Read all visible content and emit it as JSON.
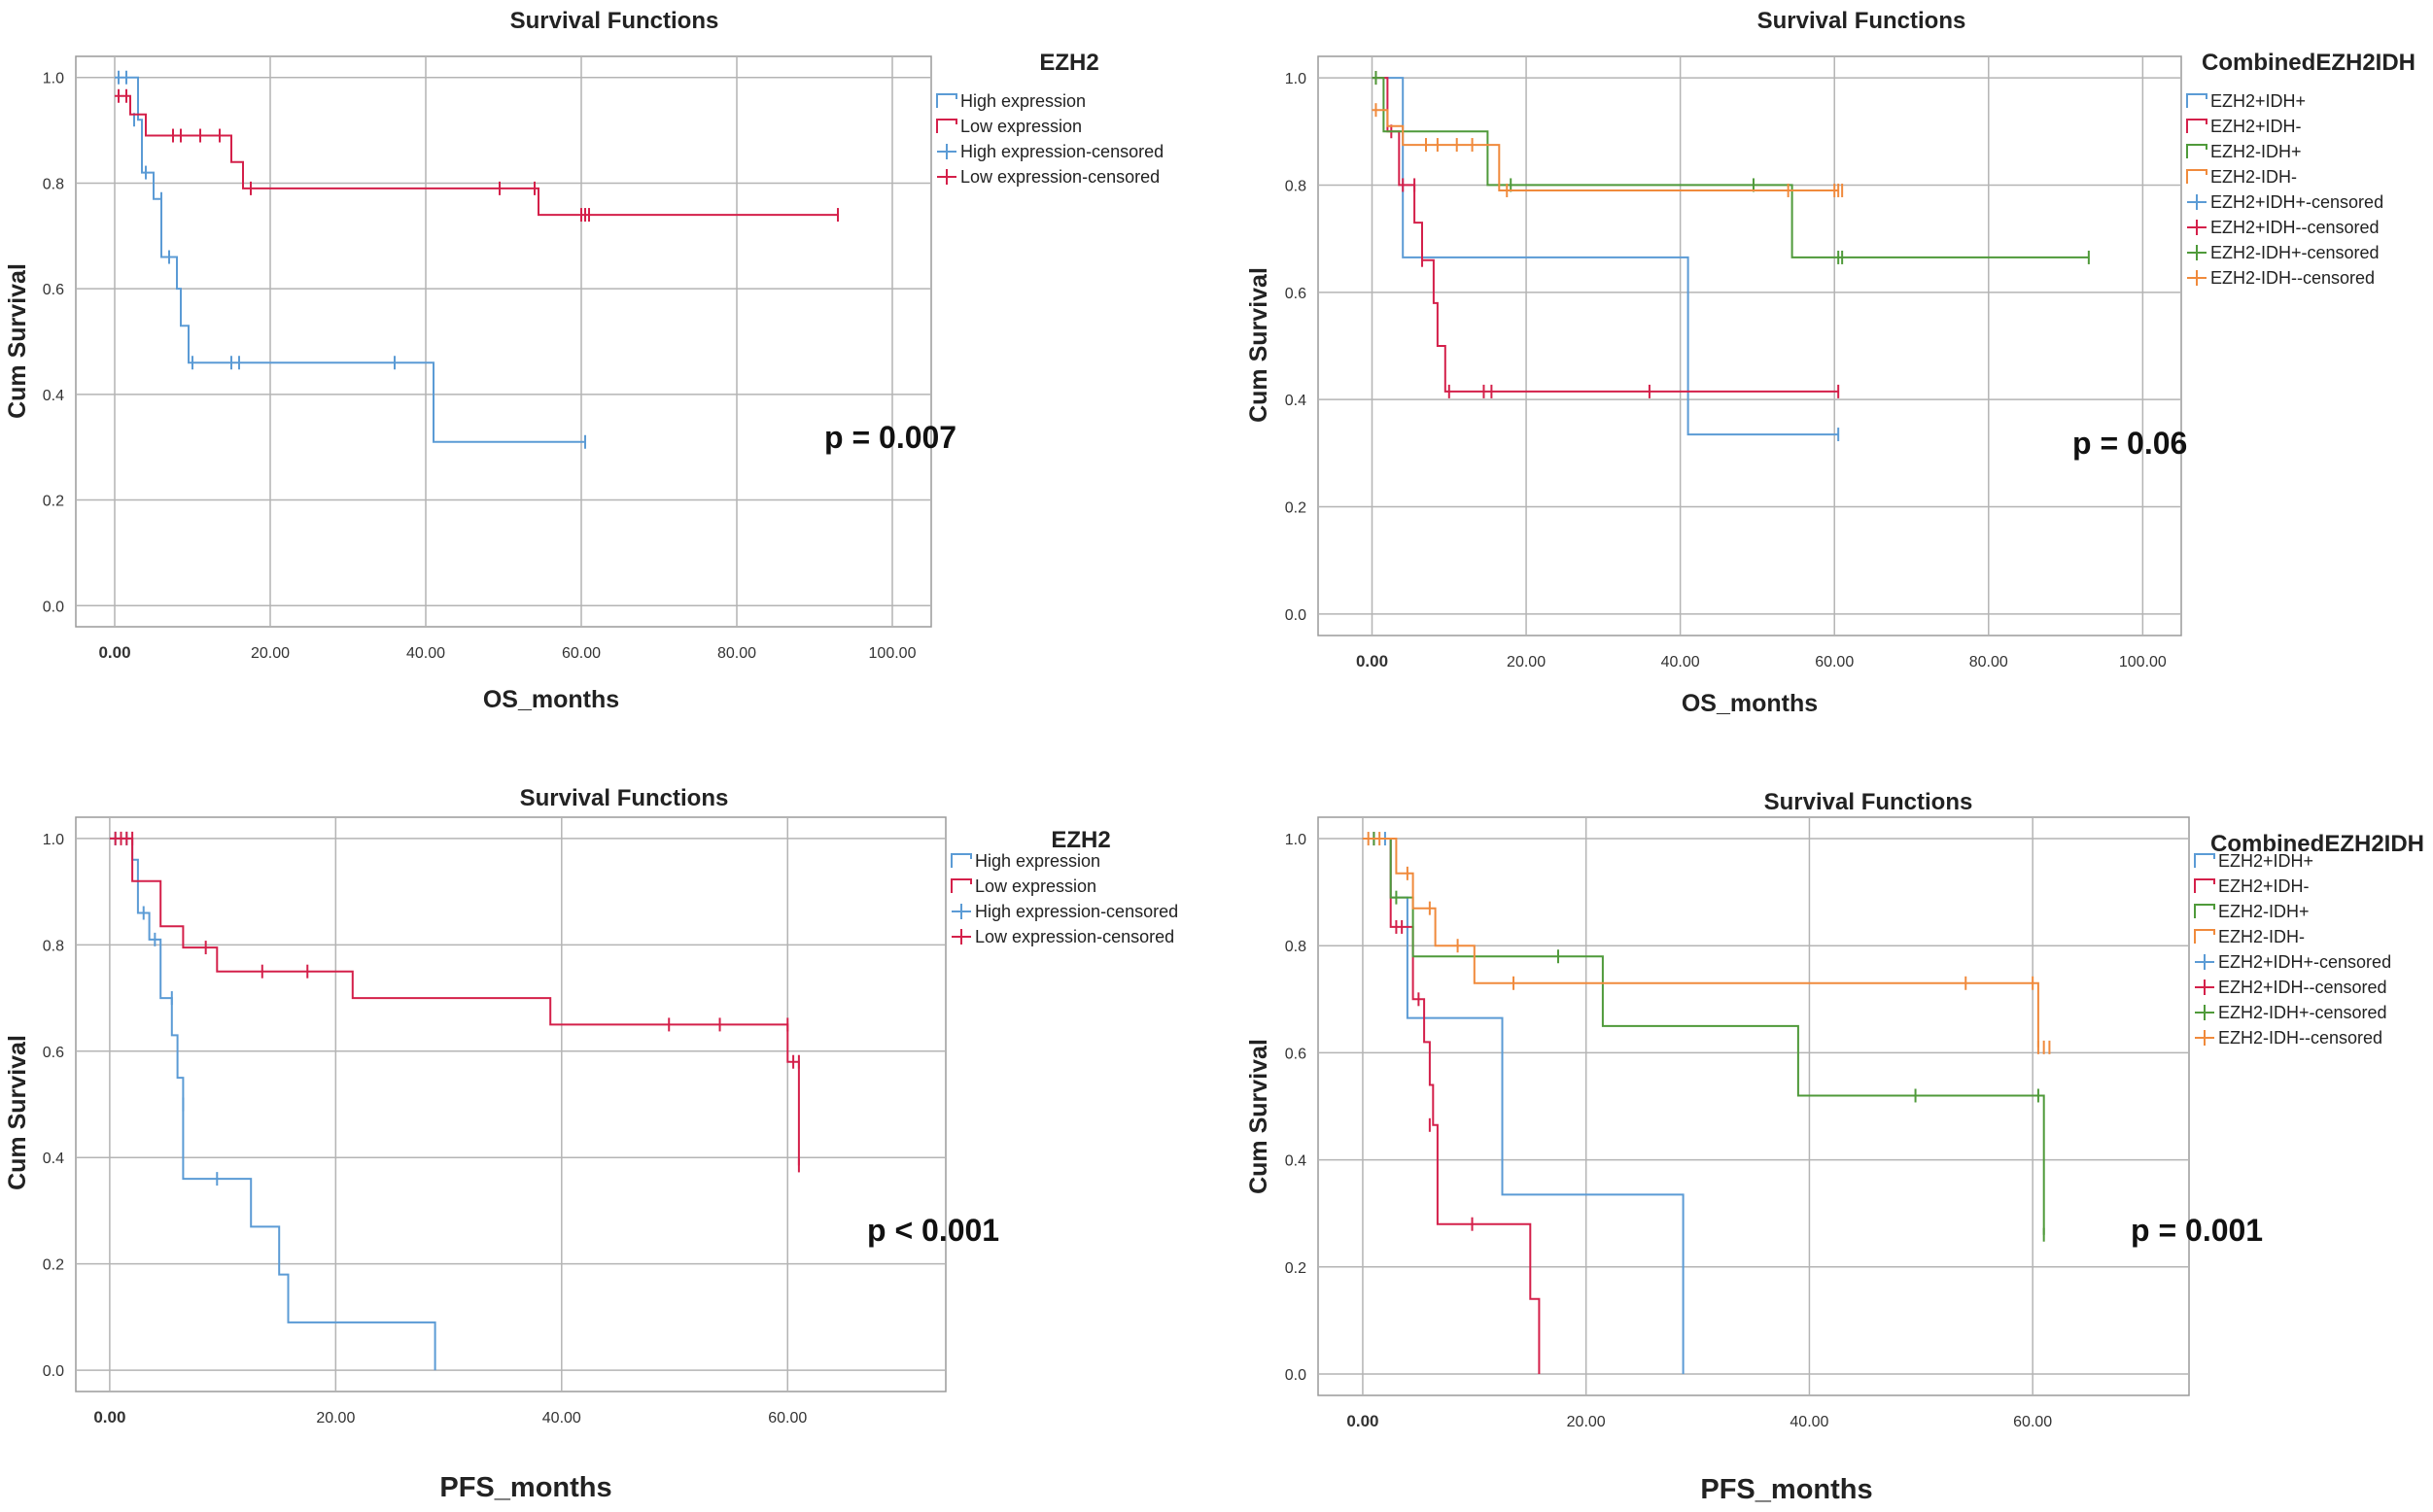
{
  "figure": "Kaplan-Meier survival curves",
  "chart_data": [
    {
      "type": "line",
      "title": "Survival Functions",
      "xlabel": "OS_months",
      "ylabel": "Cum Survival",
      "xlim": [
        -5,
        105
      ],
      "ylim": [
        -0.04,
        1.04
      ],
      "x_ticks": [
        "0.00",
        "20.00",
        "40.00",
        "60.00",
        "80.00",
        "100.00"
      ],
      "y_ticks": [
        "0.0",
        "0.2",
        "0.4",
        "0.6",
        "0.8",
        "1.0"
      ],
      "legend_title": "EZH2",
      "legend_items": [
        "High expression",
        "Low expression",
        "High expression-censored",
        "Low expression-censored"
      ],
      "p_value": "p = 0.007",
      "series": [
        {
          "name": "High expression",
          "color": "#5b9bd5",
          "steps": [
            [
              0,
              1.0
            ],
            [
              3,
              0.92
            ],
            [
              3.5,
              0.82
            ],
            [
              5,
              0.77
            ],
            [
              6,
              0.66
            ],
            [
              8,
              0.6
            ],
            [
              8.5,
              0.53
            ],
            [
              9.5,
              0.46
            ],
            [
              41,
              0.31
            ],
            [
              60.5,
              0.31
            ]
          ],
          "censored": [
            [
              0.5,
              1.0
            ],
            [
              1.5,
              1.0
            ],
            [
              2.5,
              0.92
            ],
            [
              4,
              0.82
            ],
            [
              6,
              0.77
            ],
            [
              7,
              0.66
            ],
            [
              10,
              0.46
            ],
            [
              15,
              0.46
            ],
            [
              16,
              0.46
            ],
            [
              36,
              0.46
            ],
            [
              60.5,
              0.31
            ]
          ]
        },
        {
          "name": "Low expression",
          "color": "#d4204a",
          "steps": [
            [
              0,
              0.965
            ],
            [
              2,
              0.93
            ],
            [
              4,
              0.89
            ],
            [
              15,
              0.84
            ],
            [
              16.5,
              0.79
            ],
            [
              54.5,
              0.74
            ],
            [
              93,
              0.74
            ]
          ],
          "censored": [
            [
              0.5,
              0.965
            ],
            [
              1.5,
              0.965
            ],
            [
              7.5,
              0.89
            ],
            [
              8.5,
              0.89
            ],
            [
              11,
              0.89
            ],
            [
              13.5,
              0.89
            ],
            [
              17.5,
              0.79
            ],
            [
              49.5,
              0.79
            ],
            [
              54,
              0.79
            ],
            [
              60,
              0.74
            ],
            [
              60.5,
              0.74
            ],
            [
              61,
              0.74
            ],
            [
              93,
              0.74
            ]
          ]
        }
      ]
    },
    {
      "type": "line",
      "title": "Survival Functions",
      "xlabel": "OS_months",
      "ylabel": "Cum Survival",
      "xlim": [
        -7,
        105
      ],
      "ylim": [
        -0.04,
        1.04
      ],
      "x_ticks": [
        "0.00",
        "20.00",
        "40.00",
        "60.00",
        "80.00",
        "100.00"
      ],
      "y_ticks": [
        "0.0",
        "0.2",
        "0.4",
        "0.6",
        "0.8",
        "1.0"
      ],
      "legend_title": "CombinedEZH2IDH",
      "legend_items": [
        "EZH2+IDH+",
        "EZH2+IDH-",
        "EZH2-IDH+",
        "EZH2-IDH-",
        "EZH2+IDH+-censored",
        "EZH2+IDH--censored",
        "EZH2-IDH+-censored",
        "EZH2-IDH--censored"
      ],
      "p_value": "p = 0.06",
      "series": [
        {
          "name": "EZH2+IDH+",
          "color": "#5b9bd5",
          "steps": [
            [
              0,
              1.0
            ],
            [
              4,
              0.665
            ],
            [
              41,
              0.335
            ],
            [
              60.5,
              0.335
            ]
          ],
          "censored": [
            [
              60.5,
              0.335
            ]
          ]
        },
        {
          "name": "EZH2+IDH-",
          "color": "#d4204a",
          "steps": [
            [
              0,
              1.0
            ],
            [
              2,
              0.9
            ],
            [
              3.5,
              0.8
            ],
            [
              5.5,
              0.73
            ],
            [
              6.5,
              0.66
            ],
            [
              8,
              0.58
            ],
            [
              8.5,
              0.5
            ],
            [
              9.5,
              0.415
            ],
            [
              60.5,
              0.415
            ]
          ],
          "censored": [
            [
              0.5,
              1.0
            ],
            [
              2.5,
              0.9
            ],
            [
              4,
              0.8
            ],
            [
              5.5,
              0.8
            ],
            [
              6.5,
              0.66
            ],
            [
              10,
              0.415
            ],
            [
              14.5,
              0.415
            ],
            [
              15.5,
              0.415
            ],
            [
              36,
              0.415
            ],
            [
              60.5,
              0.415
            ]
          ]
        },
        {
          "name": "EZH2-IDH+",
          "color": "#4f9a3a",
          "steps": [
            [
              0,
              1.0
            ],
            [
              1.5,
              0.9
            ],
            [
              15,
              0.8
            ],
            [
              54.5,
              0.665
            ],
            [
              93,
              0.665
            ]
          ],
          "censored": [
            [
              0.5,
              1.0
            ],
            [
              18,
              0.8
            ],
            [
              49.5,
              0.8
            ],
            [
              60.5,
              0.665
            ],
            [
              61,
              0.665
            ],
            [
              93,
              0.665
            ]
          ]
        },
        {
          "name": "EZH2-IDH-",
          "color": "#f08a3c",
          "steps": [
            [
              0,
              0.94
            ],
            [
              1.5,
              0.94
            ],
            [
              2,
              0.91
            ],
            [
              4,
              0.875
            ],
            [
              16.5,
              0.79
            ],
            [
              60.5,
              0.79
            ]
          ],
          "censored": [
            [
              0.5,
              0.94
            ],
            [
              7,
              0.875
            ],
            [
              8.5,
              0.875
            ],
            [
              11,
              0.875
            ],
            [
              13,
              0.875
            ],
            [
              17.5,
              0.79
            ],
            [
              54,
              0.79
            ],
            [
              60,
              0.79
            ],
            [
              60.5,
              0.79
            ],
            [
              61,
              0.79
            ]
          ]
        }
      ]
    },
    {
      "type": "line",
      "title": "Survival Functions",
      "xlabel": "PFS_months",
      "ylabel": "Cum Survival",
      "xlim": [
        -3,
        74
      ],
      "ylim": [
        -0.04,
        1.04
      ],
      "x_ticks": [
        "0.00",
        "20.00",
        "40.00",
        "60.00"
      ],
      "y_ticks": [
        "0.0",
        "0.2",
        "0.4",
        "0.6",
        "0.8",
        "1.0"
      ],
      "legend_title": "EZH2",
      "legend_items": [
        "High expression",
        "Low expression",
        "High expression-censored",
        "Low expression-censored"
      ],
      "p_value": "p < 0.001",
      "series": [
        {
          "name": "High expression",
          "color": "#5b9bd5",
          "steps": [
            [
              0,
              1.0
            ],
            [
              2,
              0.96
            ],
            [
              2.5,
              0.86
            ],
            [
              3.5,
              0.81
            ],
            [
              4.5,
              0.7
            ],
            [
              5.5,
              0.63
            ],
            [
              6,
              0.55
            ],
            [
              6.5,
              0.36
            ],
            [
              12.5,
              0.27
            ],
            [
              15,
              0.18
            ],
            [
              15.8,
              0.09
            ],
            [
              28.8,
              0.0
            ]
          ],
          "censored": [
            [
              0.5,
              1.0
            ],
            [
              1.5,
              1.0
            ],
            [
              3,
              0.86
            ],
            [
              4,
              0.81
            ],
            [
              5.5,
              0.7
            ],
            [
              6.5,
              0.5
            ],
            [
              9.5,
              0.36
            ]
          ]
        },
        {
          "name": "Low expression",
          "color": "#d4204a",
          "steps": [
            [
              0,
              1.0
            ],
            [
              2,
              0.92
            ],
            [
              4.5,
              0.835
            ],
            [
              6.5,
              0.795
            ],
            [
              9.5,
              0.75
            ],
            [
              21.5,
              0.7
            ],
            [
              39,
              0.65
            ],
            [
              60,
              0.58
            ],
            [
              61,
              0.385
            ]
          ],
          "censored": [
            [
              0.5,
              1.0
            ],
            [
              1,
              1.0
            ],
            [
              1.5,
              1.0
            ],
            [
              2,
              1.0
            ],
            [
              8.5,
              0.795
            ],
            [
              13.5,
              0.75
            ],
            [
              17.5,
              0.75
            ],
            [
              49.5,
              0.65
            ],
            [
              54,
              0.65
            ],
            [
              60,
              0.65
            ],
            [
              60.5,
              0.58
            ],
            [
              61,
              0.58
            ],
            [
              61,
              0.385
            ]
          ]
        }
      ]
    },
    {
      "type": "line",
      "title": "Survival Functions",
      "xlabel": "PFS_months",
      "ylabel": "Cum Survival",
      "xlim": [
        -4,
        74
      ],
      "ylim": [
        -0.04,
        1.04
      ],
      "x_ticks": [
        "0.00",
        "20.00",
        "40.00",
        "60.00"
      ],
      "y_ticks": [
        "0.0",
        "0.2",
        "0.4",
        "0.6",
        "0.8",
        "1.0"
      ],
      "legend_title": "CombinedEZH2IDH",
      "legend_items": [
        "EZH2+IDH+",
        "EZH2+IDH-",
        "EZH2-IDH+",
        "EZH2-IDH-",
        "EZH2+IDH+-censored",
        "EZH2+IDH--censored",
        "EZH2-IDH+-censored",
        "EZH2-IDH--censored"
      ],
      "p_value": "p = 0.001",
      "series": [
        {
          "name": "EZH2+IDH+",
          "color": "#5b9bd5",
          "steps": [
            [
              0,
              1.0
            ],
            [
              2.5,
              0.89
            ],
            [
              4,
              0.665
            ],
            [
              12.5,
              0.335
            ],
            [
              28.7,
              0.0
            ]
          ],
          "censored": [
            [
              1,
              1.0
            ],
            [
              2,
              1.0
            ]
          ]
        },
        {
          "name": "EZH2+IDH-",
          "color": "#d4204a",
          "steps": [
            [
              0,
              1.0
            ],
            [
              2.5,
              0.835
            ],
            [
              4.5,
              0.7
            ],
            [
              5.5,
              0.62
            ],
            [
              6,
              0.54
            ],
            [
              6.3,
              0.465
            ],
            [
              6.7,
              0.28
            ],
            [
              15,
              0.14
            ],
            [
              15.8,
              0.0
            ]
          ],
          "censored": [
            [
              1,
              1.0
            ],
            [
              3,
              0.835
            ],
            [
              3.5,
              0.835
            ],
            [
              5,
              0.7
            ],
            [
              6,
              0.465
            ],
            [
              9.8,
              0.28
            ]
          ]
        },
        {
          "name": "EZH2-IDH+",
          "color": "#4f9a3a",
          "steps": [
            [
              0,
              1.0
            ],
            [
              2.5,
              0.89
            ],
            [
              4.5,
              0.78
            ],
            [
              21.5,
              0.65
            ],
            [
              39,
              0.52
            ],
            [
              61,
              0.26
            ]
          ],
          "censored": [
            [
              1,
              1.0
            ],
            [
              3,
              0.89
            ],
            [
              17.5,
              0.78
            ],
            [
              49.5,
              0.52
            ],
            [
              60.5,
              0.52
            ],
            [
              61,
              0.26
            ]
          ]
        },
        {
          "name": "EZH2-IDH-",
          "color": "#f08a3c",
          "steps": [
            [
              0,
              1.0
            ],
            [
              3,
              0.935
            ],
            [
              4.5,
              0.87
            ],
            [
              6.5,
              0.8
            ],
            [
              10,
              0.73
            ],
            [
              60.5,
              0.61
            ]
          ],
          "censored": [
            [
              0.5,
              1.0
            ],
            [
              1.5,
              1.0
            ],
            [
              4,
              0.935
            ],
            [
              6,
              0.87
            ],
            [
              8.5,
              0.8
            ],
            [
              13.5,
              0.73
            ],
            [
              54,
              0.73
            ],
            [
              60,
              0.73
            ],
            [
              60.5,
              0.61
            ],
            [
              61,
              0.61
            ],
            [
              61.5,
              0.61
            ]
          ]
        }
      ]
    }
  ]
}
